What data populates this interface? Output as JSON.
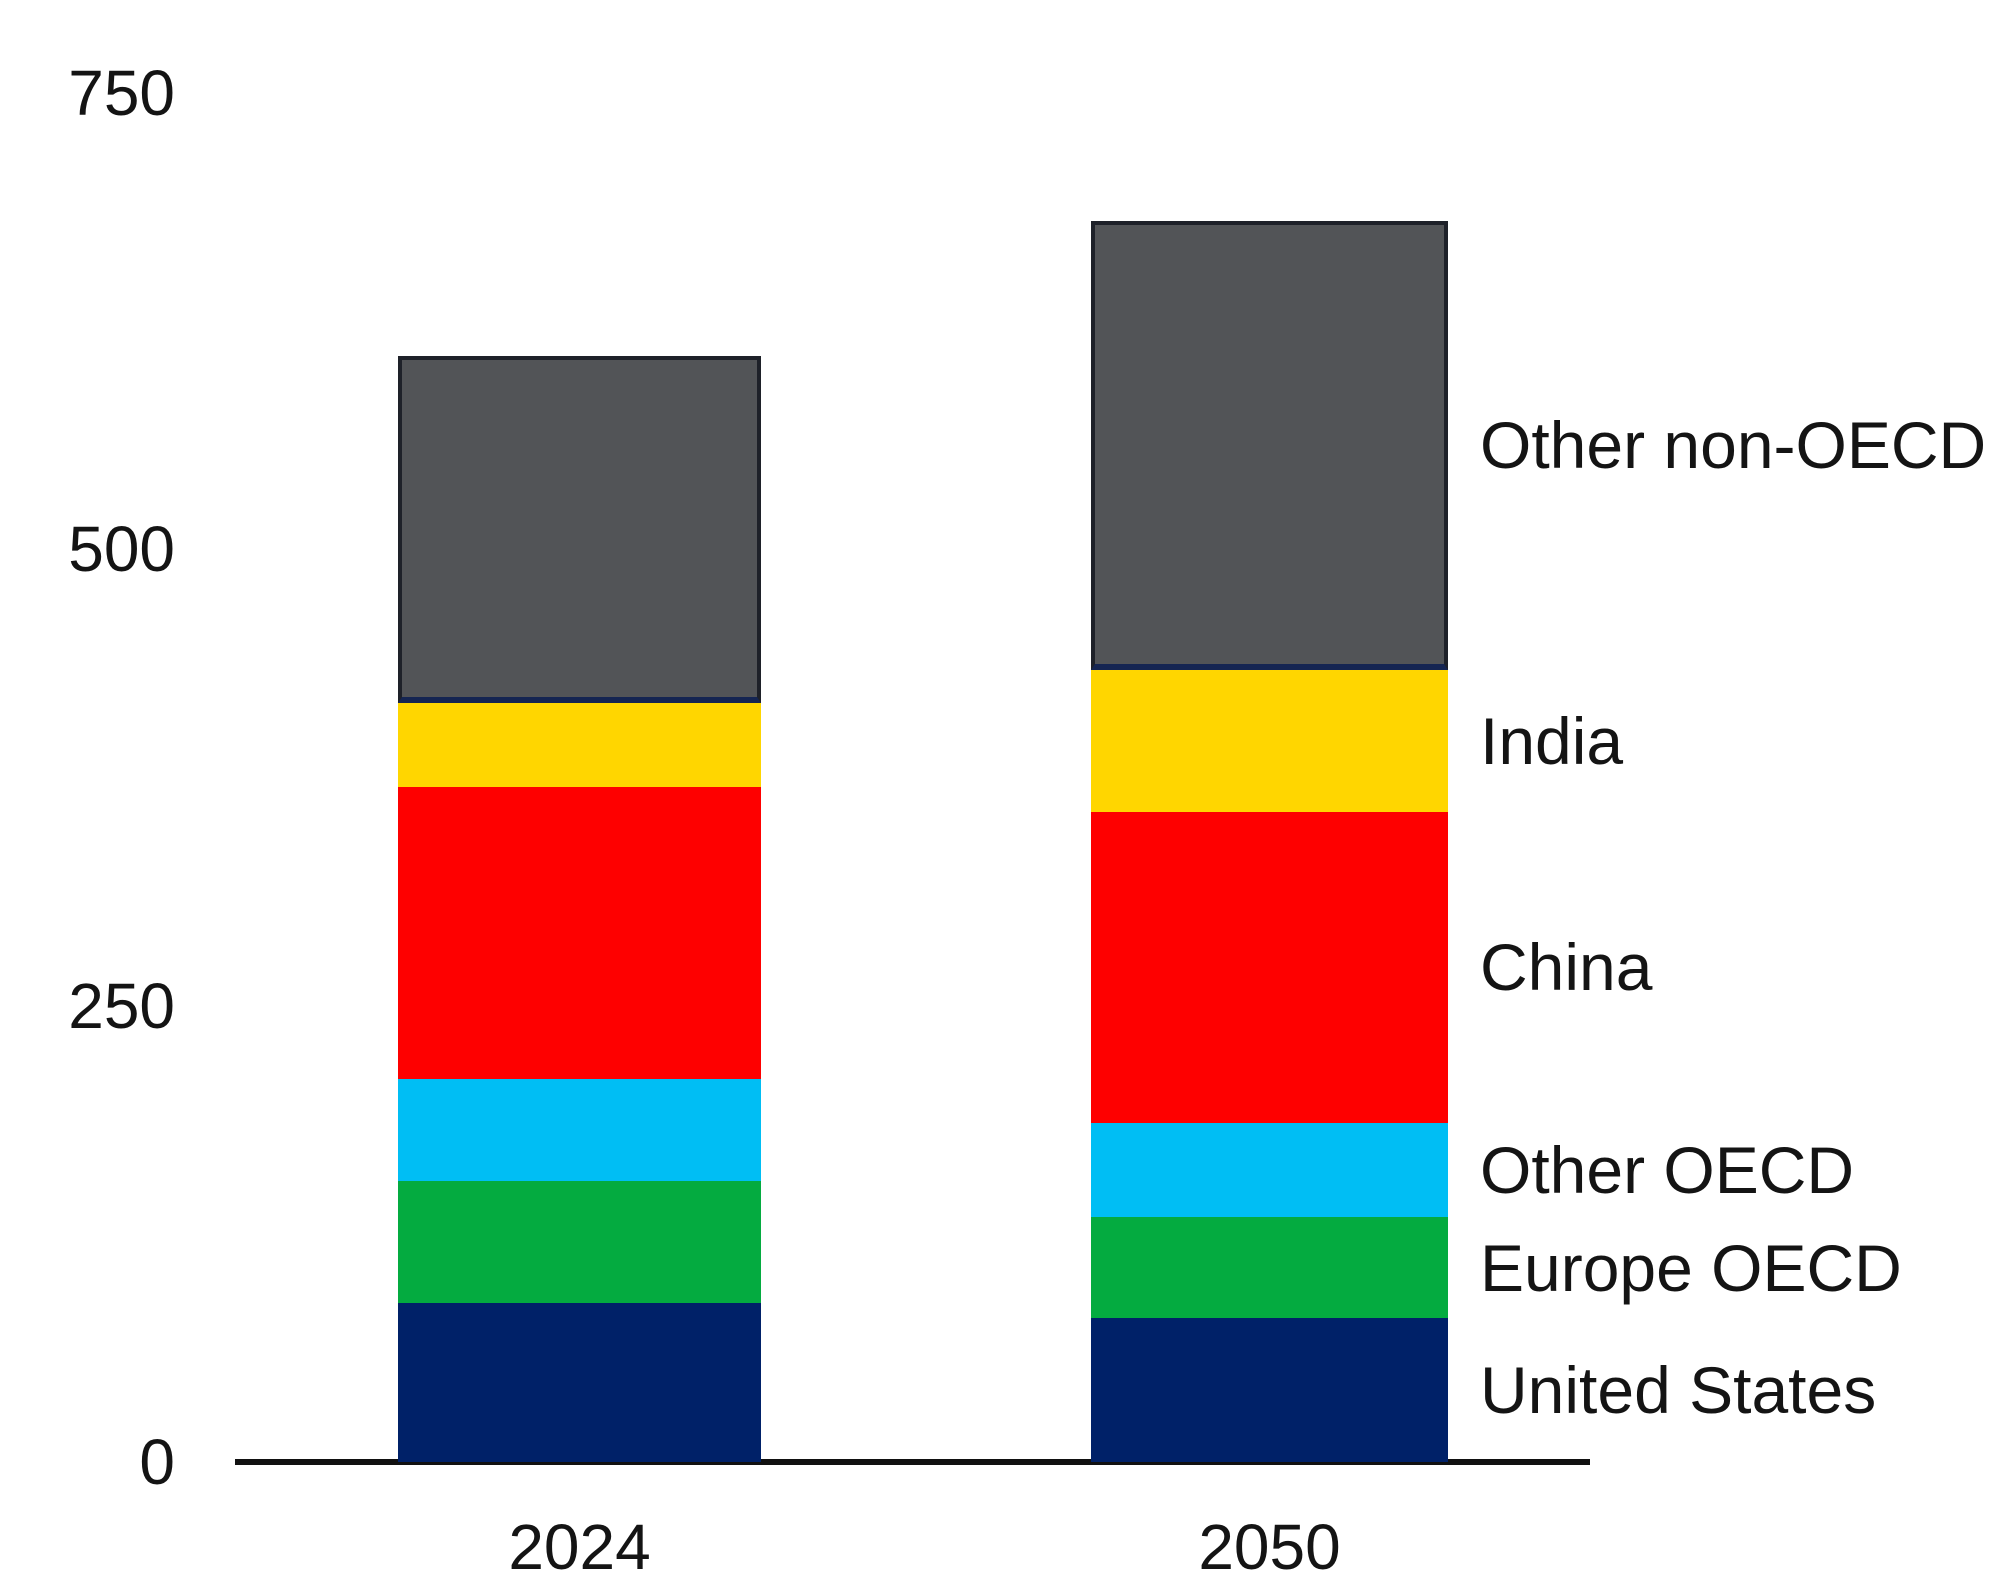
{
  "chart_data": {
    "type": "bar",
    "subtype": "stacked",
    "title": "",
    "xlabel": "",
    "ylabel": "",
    "categories": [
      "2024",
      "2050"
    ],
    "series": [
      {
        "name": "United States",
        "color": "#002168",
        "values": [
          87,
          79
        ]
      },
      {
        "name": "Europe OECD",
        "color": "#04ab40",
        "values": [
          67,
          55
        ]
      },
      {
        "name": "Other OECD",
        "color": "#00bef4",
        "values": [
          56,
          52
        ]
      },
      {
        "name": "China",
        "color": "#fe0000",
        "values": [
          160,
          170
        ]
      },
      {
        "name": "India",
        "color": "#ffd600",
        "values": [
          46,
          78
        ]
      },
      {
        "name": "Other non-OECD",
        "color": "#525457",
        "values": [
          190,
          246
        ]
      }
    ],
    "totals": [
      606,
      680
    ],
    "yticks": [
      0,
      250,
      500,
      750
    ],
    "ylim": [
      0,
      750
    ],
    "grid": false,
    "legend_position": "right, each label aligned to its 2050 segment",
    "axis_color": "#111111",
    "text_color": "#141414",
    "outlined_segment": "Other non-OECD",
    "outline_color": "#1e2129",
    "separator_color": "#152552"
  }
}
